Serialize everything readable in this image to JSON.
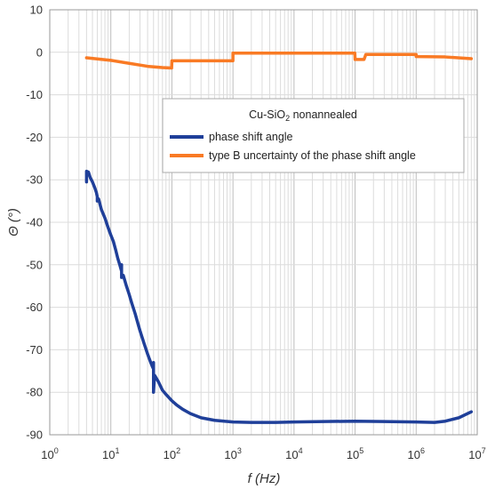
{
  "chart_data": {
    "type": "line",
    "x_scale": "log",
    "xlim": [
      1,
      10000000
    ],
    "ylim": [
      -90,
      10
    ],
    "grid": true,
    "xlabel": {
      "main": "f",
      "unit": " (Hz)"
    },
    "ylabel": {
      "main": "Θ",
      "unit": " (°)"
    },
    "x_ticks": [
      {
        "value": 1,
        "base": "10",
        "exp": "0"
      },
      {
        "value": 10,
        "base": "10",
        "exp": "1"
      },
      {
        "value": 100,
        "base": "10",
        "exp": "2"
      },
      {
        "value": 1000,
        "base": "10",
        "exp": "3"
      },
      {
        "value": 10000,
        "base": "10",
        "exp": "4"
      },
      {
        "value": 100000,
        "base": "10",
        "exp": "5"
      },
      {
        "value": 1000000,
        "base": "10",
        "exp": "6"
      },
      {
        "value": 10000000,
        "base": "10",
        "exp": "7"
      }
    ],
    "y_ticks": [
      {
        "value": 10,
        "label": "10"
      },
      {
        "value": 0,
        "label": "0"
      },
      {
        "value": -10,
        "label": "-10"
      },
      {
        "value": -20,
        "label": "-20"
      },
      {
        "value": -30,
        "label": "-30"
      },
      {
        "value": -40,
        "label": "-40"
      },
      {
        "value": -50,
        "label": "-50"
      },
      {
        "value": -60,
        "label": "-60"
      },
      {
        "value": -70,
        "label": "-70"
      },
      {
        "value": -80,
        "label": "-80"
      },
      {
        "value": -90,
        "label": "-90"
      }
    ],
    "legend": {
      "position": "upper-right",
      "title_main": "Cu-SiO",
      "title_sub": "2",
      "title_rest": " nonannealed"
    },
    "series": [
      {
        "name": "phase shift angle",
        "color": "#1f3f99",
        "points": [
          [
            4,
            -30.5
          ],
          [
            4,
            -28
          ],
          [
            4.3,
            -28.2
          ],
          [
            4.6,
            -29.5
          ],
          [
            5,
            -30.5
          ],
          [
            5.5,
            -32
          ],
          [
            5.8,
            -33
          ],
          [
            6,
            -34
          ],
          [
            6,
            -35
          ],
          [
            6.3,
            -34.5
          ],
          [
            7,
            -37
          ],
          [
            8,
            -39
          ],
          [
            9,
            -41.2
          ],
          [
            10,
            -43
          ],
          [
            11,
            -44.5
          ],
          [
            12,
            -46.5
          ],
          [
            13,
            -48.5
          ],
          [
            14,
            -50
          ],
          [
            15,
            -51.5
          ],
          [
            15,
            -50
          ],
          [
            15,
            -53
          ],
          [
            16,
            -52.5
          ],
          [
            18,
            -55
          ],
          [
            20,
            -57
          ],
          [
            22,
            -59
          ],
          [
            25,
            -61.5
          ],
          [
            28,
            -64
          ],
          [
            30,
            -65.5
          ],
          [
            35,
            -68.5
          ],
          [
            40,
            -71
          ],
          [
            45,
            -73
          ],
          [
            48,
            -74
          ],
          [
            50,
            -74.5
          ],
          [
            50,
            -73
          ],
          [
            50,
            -80
          ],
          [
            52,
            -76
          ],
          [
            60,
            -77.5
          ],
          [
            70,
            -79.5
          ],
          [
            80,
            -80.5
          ],
          [
            100,
            -82
          ],
          [
            120,
            -83
          ],
          [
            150,
            -84
          ],
          [
            200,
            -85
          ],
          [
            300,
            -86
          ],
          [
            500,
            -86.6
          ],
          [
            1000,
            -87
          ],
          [
            2000,
            -87.1
          ],
          [
            5000,
            -87.1
          ],
          [
            10000,
            -87
          ],
          [
            30000,
            -86.9
          ],
          [
            100000,
            -86.8
          ],
          [
            300000,
            -86.9
          ],
          [
            1000000,
            -87
          ],
          [
            2000000,
            -87.1
          ],
          [
            3000000,
            -86.8
          ],
          [
            5000000,
            -86
          ],
          [
            7000000,
            -85
          ],
          [
            8000000,
            -84.6
          ]
        ]
      },
      {
        "name": "type B uncertainty of the phase shift angle",
        "color": "#f97a24",
        "points": [
          [
            4,
            -1.3
          ],
          [
            10,
            -1.9
          ],
          [
            20,
            -2.6
          ],
          [
            40,
            -3.3
          ],
          [
            70,
            -3.6
          ],
          [
            99,
            -3.7
          ],
          [
            100,
            -2
          ],
          [
            999,
            -2
          ],
          [
            1000,
            -0.2
          ],
          [
            99000,
            -0.2
          ],
          [
            100000,
            -1.7
          ],
          [
            140000,
            -1.7
          ],
          [
            150000,
            -0.5
          ],
          [
            999000,
            -0.5
          ],
          [
            1000000,
            -1
          ],
          [
            3000000,
            -1.1
          ],
          [
            8000000,
            -1.5
          ]
        ]
      }
    ]
  }
}
